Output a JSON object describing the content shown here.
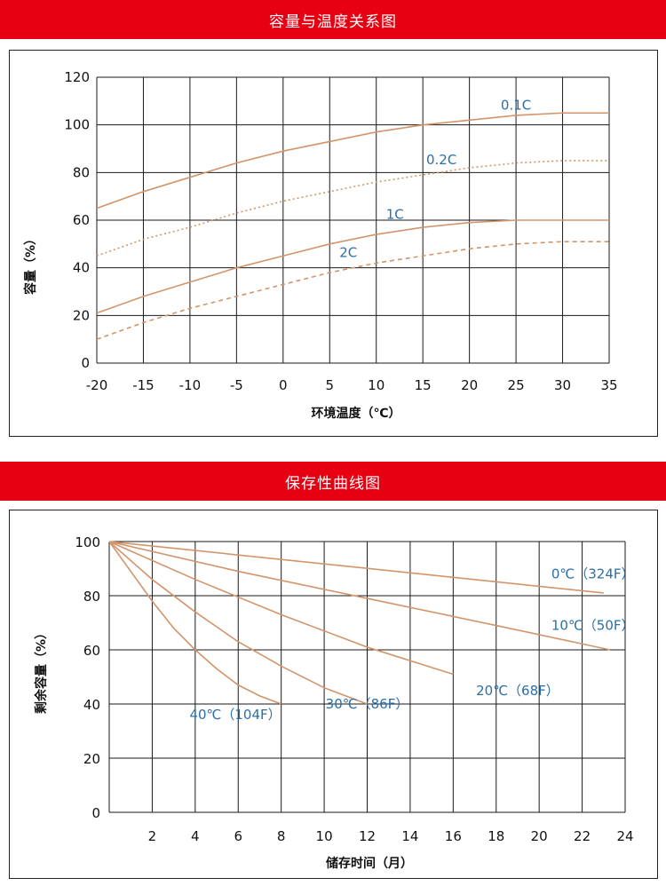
{
  "chart_data": [
    {
      "type": "line",
      "title": "容量与温度关系图",
      "xlabel": "环境温度（℃）",
      "ylabel": "容量（%）",
      "xlim": [
        -20,
        35
      ],
      "ylim": [
        0,
        120
      ],
      "x_ticks": [
        "-20",
        "-15",
        "-10",
        "-5",
        "0",
        "5",
        "10",
        "15",
        "20",
        "25",
        "30",
        "35"
      ],
      "y_ticks": [
        "0",
        "20",
        "40",
        "60",
        "80",
        "100",
        "120"
      ],
      "grid": true,
      "series": [
        {
          "name": "0.1C",
          "style": "solid",
          "x": [
            -20,
            -15,
            -10,
            -5,
            0,
            5,
            10,
            15,
            20,
            25,
            30,
            35
          ],
          "y": [
            65,
            72,
            78,
            84,
            89,
            93,
            97,
            100,
            102,
            104,
            105,
            105
          ]
        },
        {
          "name": "0.2C",
          "style": "dotted",
          "x": [
            -20,
            -15,
            -10,
            -5,
            0,
            5,
            10,
            15,
            20,
            25,
            30,
            35
          ],
          "y": [
            45,
            52,
            57,
            63,
            68,
            72,
            76,
            79,
            82,
            84,
            85,
            85
          ]
        },
        {
          "name": "1C",
          "style": "solid",
          "x": [
            -20,
            -15,
            -10,
            -5,
            0,
            5,
            10,
            15,
            20,
            25,
            30,
            35
          ],
          "y": [
            21,
            28,
            34,
            40,
            45,
            50,
            54,
            57,
            59,
            60,
            60,
            60
          ]
        },
        {
          "name": "2C",
          "style": "dashed",
          "x": [
            -20,
            -15,
            -10,
            -5,
            0,
            5,
            10,
            15,
            20,
            25,
            30,
            35
          ],
          "y": [
            10,
            17,
            23,
            28,
            33,
            38,
            42,
            45,
            48,
            50,
            51,
            51
          ]
        }
      ],
      "colors": {
        "line": "#d2956a",
        "label": "#2a6fa8",
        "banner": "#e60012"
      }
    },
    {
      "type": "line",
      "title": "保存性曲线图",
      "xlabel": "储存时间（月）",
      "ylabel": "剩余容量（%）",
      "xlim": [
        0,
        24
      ],
      "ylim": [
        0,
        100
      ],
      "x_ticks": [
        "2",
        "4",
        "6",
        "8",
        "10",
        "12",
        "14",
        "16",
        "18",
        "20",
        "22",
        "24"
      ],
      "y_ticks": [
        "0",
        "20",
        "40",
        "60",
        "80",
        "100"
      ],
      "grid": true,
      "series": [
        {
          "name": "0℃（324F）",
          "x": [
            0,
            23
          ],
          "y": [
            100,
            81
          ]
        },
        {
          "name": "10℃（50F）",
          "x": [
            0,
            6,
            12,
            18,
            23.3
          ],
          "y": [
            100,
            89,
            79,
            69,
            60
          ]
        },
        {
          "name": "20℃（68F）",
          "x": [
            0,
            4,
            8,
            12,
            16
          ],
          "y": [
            100,
            86,
            73,
            61,
            51
          ]
        },
        {
          "name": "30℃（86F）",
          "x": [
            0,
            2,
            4,
            6,
            8,
            10,
            12
          ],
          "y": [
            100,
            86,
            74,
            63,
            54,
            46,
            40
          ]
        },
        {
          "name": "40℃（104F）",
          "x": [
            0,
            1,
            2,
            3,
            4,
            5,
            6,
            7,
            8
          ],
          "y": [
            100,
            89,
            78,
            68,
            60,
            53,
            47,
            43,
            40
          ]
        }
      ],
      "colors": {
        "line": "#d2956a",
        "label": "#2a6fa8",
        "banner": "#e60012"
      }
    }
  ]
}
